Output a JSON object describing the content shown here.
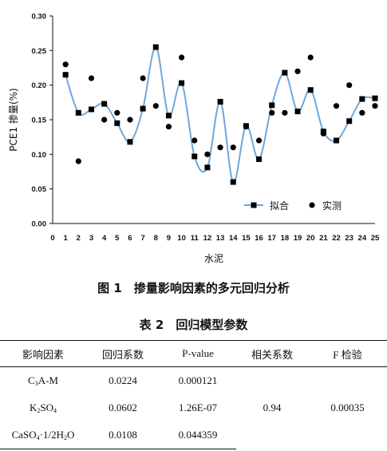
{
  "chart_data": {
    "type": "line",
    "xlabel": "水泥",
    "ylabel": "PCE1 掺量(%)",
    "ylim": [
      0,
      0.3
    ],
    "y_ticks": [
      "0.00",
      "0.05",
      "0.10",
      "0.15",
      "0.20",
      "0.25",
      "0.30"
    ],
    "x": [
      1,
      2,
      3,
      4,
      5,
      6,
      7,
      8,
      9,
      10,
      11,
      12,
      13,
      14,
      15,
      16,
      17,
      18,
      19,
      20,
      21,
      22,
      23,
      24,
      25
    ],
    "x_ticks": [
      "0",
      "1",
      "2",
      "3",
      "4",
      "5",
      "6",
      "7",
      "8",
      "9",
      "10",
      "11",
      "12",
      "13",
      "14",
      "15",
      "16",
      "17",
      "18",
      "19",
      "20",
      "21",
      "22",
      "23",
      "24",
      "25"
    ],
    "grid": false,
    "legend": "bottom-right",
    "series": [
      {
        "name": "拟合",
        "style": "line-square",
        "values": [
          0.215,
          0.16,
          0.165,
          0.173,
          0.145,
          0.118,
          0.166,
          0.255,
          0.156,
          0.203,
          0.097,
          0.081,
          0.176,
          0.06,
          0.141,
          0.093,
          0.171,
          0.218,
          0.162,
          0.193,
          0.133,
          0.12,
          0.148,
          0.18,
          0.181
        ]
      },
      {
        "name": "实测",
        "style": "marker-circle",
        "values": [
          0.23,
          0.09,
          0.21,
          0.15,
          0.16,
          0.15,
          0.21,
          0.17,
          0.14,
          0.24,
          0.12,
          0.1,
          0.11,
          0.11,
          0.14,
          0.12,
          0.16,
          0.16,
          0.22,
          0.24,
          0.13,
          0.17,
          0.2,
          0.16,
          0.17
        ]
      }
    ],
    "colors": {
      "fit_line": "#6fa8dc",
      "markers": "#000000",
      "axes": "#000000"
    }
  },
  "figure": {
    "caption": "图 1　掺量影响因素的多元回归分析"
  },
  "table": {
    "caption": "表 2　回归模型参数",
    "headers": [
      "影响因素",
      "回归系数",
      "P-value",
      "相关系数",
      "F 检验"
    ],
    "rows": [
      {
        "factor": "C3A-M",
        "coef": "0.0224",
        "p": "0.000121"
      },
      {
        "factor": "K2SO4",
        "coef": "0.0602",
        "p": "1.26E-07"
      },
      {
        "factor": "CaSO4·1/2H2O",
        "coef": "0.0108",
        "p": "0.044359"
      }
    ],
    "correlation": "0.94",
    "f_test": "0.00035"
  }
}
